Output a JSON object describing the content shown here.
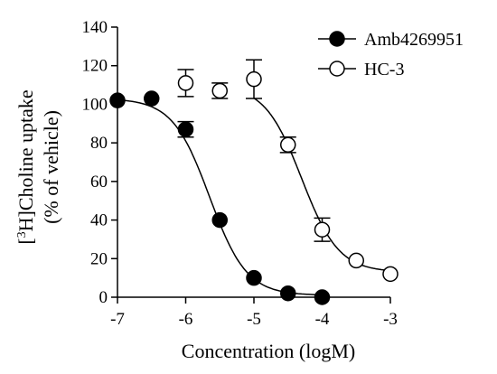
{
  "chart_data": {
    "type": "scatter",
    "xlabel": "Concentration (logM)",
    "ylabel_line1_prefix": "[",
    "ylabel_line1_sup": "3",
    "ylabel_line1_rest": "H]Choline uptake",
    "ylabel_line2": "(% of vehicle)",
    "xlim": [
      -7,
      -3
    ],
    "ylim": [
      0,
      140
    ],
    "x_ticks": [
      -7,
      -6,
      -5,
      -4,
      -3
    ],
    "x_tick_labels": [
      "-7",
      "-6",
      "-5",
      "-4",
      "-3"
    ],
    "y_ticks": [
      0,
      20,
      40,
      60,
      80,
      100,
      120,
      140
    ],
    "y_tick_labels": [
      "0",
      "20",
      "40",
      "60",
      "80",
      "100",
      "120",
      "140"
    ],
    "legend_position": "top-right",
    "series": [
      {
        "name": "Amb4269951",
        "marker": "filled-circle",
        "color": "#000000",
        "points": [
          {
            "x": -7.0,
            "y": 102,
            "err": 0
          },
          {
            "x": -6.5,
            "y": 103,
            "err": 0
          },
          {
            "x": -6.0,
            "y": 87,
            "err": 4
          },
          {
            "x": -5.5,
            "y": 40,
            "err": 0
          },
          {
            "x": -5.0,
            "y": 10,
            "err": 0
          },
          {
            "x": -4.5,
            "y": 2,
            "err": 0
          },
          {
            "x": -4.0,
            "y": 0,
            "err": 0
          }
        ],
        "fit": {
          "top": 103,
          "bottom": 1,
          "logIC50": -5.65,
          "hill": 1.6,
          "x_from": -7.0,
          "x_to": -4.0
        }
      },
      {
        "name": "HC-3",
        "marker": "open-circle",
        "color": "#000000",
        "points": [
          {
            "x": -6.0,
            "y": 111,
            "err": 7
          },
          {
            "x": -5.5,
            "y": 107,
            "err": 4
          },
          {
            "x": -5.0,
            "y": 113,
            "err": 10
          },
          {
            "x": -4.5,
            "y": 79,
            "err": 4
          },
          {
            "x": -4.0,
            "y": 35,
            "err": 6
          },
          {
            "x": -3.5,
            "y": 19,
            "err": 0
          },
          {
            "x": -3.0,
            "y": 12,
            "err": 0
          }
        ],
        "fit": {
          "top": 110,
          "bottom": 13,
          "logIC50": -4.3,
          "hill": 1.6,
          "x_from": -5.0,
          "x_to": -3.0
        }
      }
    ]
  }
}
